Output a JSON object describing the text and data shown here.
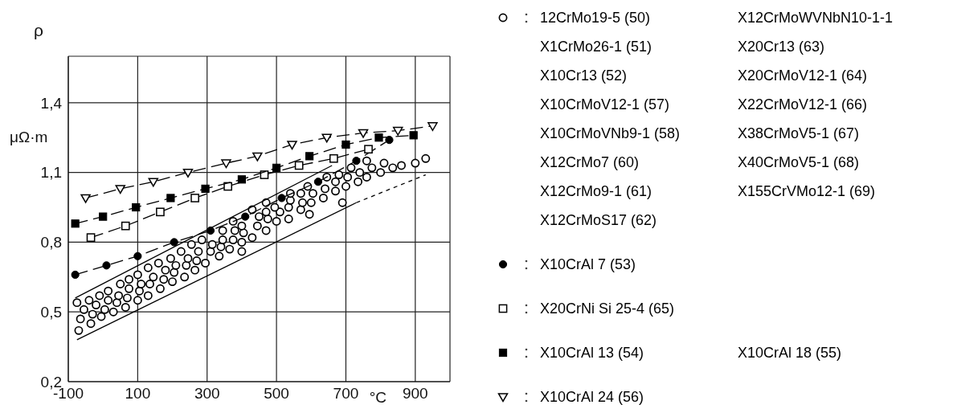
{
  "chart_data": {
    "type": "scatter",
    "xlabel": "°C",
    "ylabel": "ρ",
    "annotations": [
      "μΩ·m"
    ],
    "xlim": [
      -100,
      1000
    ],
    "xticks": [
      -100,
      100,
      300,
      500,
      700,
      900
    ],
    "ylim": [
      0.2,
      1.6
    ],
    "yticks": [
      {
        "value": 0.2,
        "label": "0,2"
      },
      {
        "value": 0.5,
        "label": "0,5"
      },
      {
        "value": 0.8,
        "label": "0,8"
      },
      {
        "value": 1.1,
        "label": "1,1"
      },
      {
        "value": 1.4,
        "label": "1,4"
      }
    ],
    "grid": true,
    "legend": "right",
    "series": [
      {
        "name": "12CrMo19-5 (50)\nX1CrMo26-1 (51)\nX10Cr13 (52)\nX10CrMoV12-1 (57)\nX10CrMoVNb9-1 (58)\nX12CrMo7 (60)\nX12CrMo9-1 (61)\nX12CrMoS17 (62)\nX12CrMoWVNbN10-1-1\nX20Cr13 (63)\nX20CrMoV12-1 (64)\nX22CrMoV12-1 (66)\nX38CrMoV5-1 (67)\nX40CrMoV5-1 (68)\nX155CrVMo12-1 (69)",
        "type": "scatter",
        "marker": "circle-open",
        "color": "#000000",
        "x": [
          -75,
          -65,
          -70,
          -55,
          -35,
          -40,
          -30,
          -20,
          -10,
          -5,
          5,
          15,
          15,
          30,
          40,
          45,
          50,
          65,
          70,
          75,
          75,
          100,
          105,
          110,
          100,
          130,
          135,
          145,
          130,
          165,
          175,
          180,
          160,
          200,
          205,
          210,
          195,
          235,
          240,
          245,
          225,
          265,
          270,
          275,
          255,
          295,
          310,
          315,
          285,
          335,
          340,
          345,
          345,
          365,
          375,
          380,
          375,
          400,
          400,
          405,
          400,
          430,
          445,
          450,
          430,
          470,
          475,
          470,
          470,
          500,
          510,
          495,
          535,
          535,
          540,
          540,
          570,
          575,
          570,
          595,
          600,
          605,
          590,
          635,
          640,
          670,
          690,
          700,
          645,
          680,
          715,
          760,
          740,
          760,
          775,
          800,
          810,
          835,
          860,
          900,
          930,
          735,
          705,
          670
        ],
        "values": [
          0.54,
          0.47,
          0.42,
          0.51,
          0.45,
          0.55,
          0.49,
          0.53,
          0.57,
          0.48,
          0.51,
          0.55,
          0.59,
          0.5,
          0.54,
          0.57,
          0.62,
          0.52,
          0.56,
          0.6,
          0.64,
          0.55,
          0.59,
          0.62,
          0.66,
          0.57,
          0.62,
          0.65,
          0.69,
          0.6,
          0.64,
          0.68,
          0.71,
          0.63,
          0.67,
          0.7,
          0.73,
          0.65,
          0.7,
          0.73,
          0.76,
          0.68,
          0.72,
          0.76,
          0.79,
          0.71,
          0.76,
          0.79,
          0.81,
          0.74,
          0.78,
          0.81,
          0.85,
          0.77,
          0.81,
          0.85,
          0.89,
          0.76,
          0.8,
          0.84,
          0.87,
          0.82,
          0.87,
          0.91,
          0.94,
          0.85,
          0.9,
          0.93,
          0.97,
          0.89,
          0.93,
          0.95,
          0.9,
          0.95,
          0.98,
          1.01,
          0.94,
          0.97,
          1.01,
          0.92,
          0.97,
          1.01,
          1.04,
          0.99,
          1.03,
          1.02,
          0.97,
          1.04,
          1.08,
          1.09,
          1.12,
          1.15,
          1.1,
          1.08,
          1.12,
          1.1,
          1.14,
          1.12,
          1.13,
          1.14,
          1.16,
          1.06,
          1.08,
          1.06
        ]
      },
      {
        "name": "X10CrAl 7 (53)",
        "type": "line",
        "marker": "circle",
        "line_style": "dashed",
        "color": "#000000",
        "x": [
          -80,
          10,
          100,
          205,
          310,
          410,
          515,
          620,
          730,
          825
        ],
        "values": [
          0.66,
          0.7,
          0.74,
          0.8,
          0.85,
          0.91,
          0.99,
          1.06,
          1.15,
          1.24
        ]
      },
      {
        "name": "X20CrNi Si 25-4 (65)",
        "type": "line",
        "marker": "square-open",
        "line_style": "dashed",
        "color": "#000000",
        "x": [
          -35,
          65,
          165,
          265,
          360,
          465,
          565,
          665,
          765
        ],
        "values": [
          0.82,
          0.87,
          0.93,
          0.99,
          1.04,
          1.09,
          1.13,
          1.16,
          1.2
        ]
      },
      {
        "name": "X10CrAl 13 (54)\nX10CrAl 18 (55)",
        "type": "line",
        "marker": "square",
        "line_style": "dashed",
        "color": "#000000",
        "x": [
          -80,
          0,
          95,
          195,
          295,
          400,
          500,
          595,
          700,
          795,
          895
        ],
        "values": [
          0.88,
          0.91,
          0.95,
          0.99,
          1.03,
          1.07,
          1.12,
          1.17,
          1.22,
          1.25,
          1.26
        ]
      },
      {
        "name": "X10CrAl 24 (56)",
        "type": "line",
        "marker": "triangle-open",
        "line_style": "dashed",
        "color": "#000000",
        "x": [
          -50,
          50,
          145,
          245,
          355,
          445,
          545,
          645,
          750,
          850,
          950
        ],
        "values": [
          0.99,
          1.03,
          1.06,
          1.1,
          1.14,
          1.17,
          1.22,
          1.25,
          1.27,
          1.28,
          1.3
        ]
      },
      {
        "type": "line",
        "marker": "none",
        "line_style": "solid",
        "color": "#000000",
        "x": [
          -80,
          660
        ],
        "values": [
          0.56,
          1.13
        ]
      },
      {
        "type": "line",
        "marker": "none",
        "line_style": "solid",
        "color": "#000000",
        "x": [
          -75,
          730
        ],
        "values": [
          0.38,
          0.97
        ]
      },
      {
        "type": "line",
        "marker": "none",
        "line_style": "dotted",
        "color": "#000000",
        "x": [
          730,
          930
        ],
        "values": [
          0.97,
          1.09
        ]
      }
    ]
  }
}
